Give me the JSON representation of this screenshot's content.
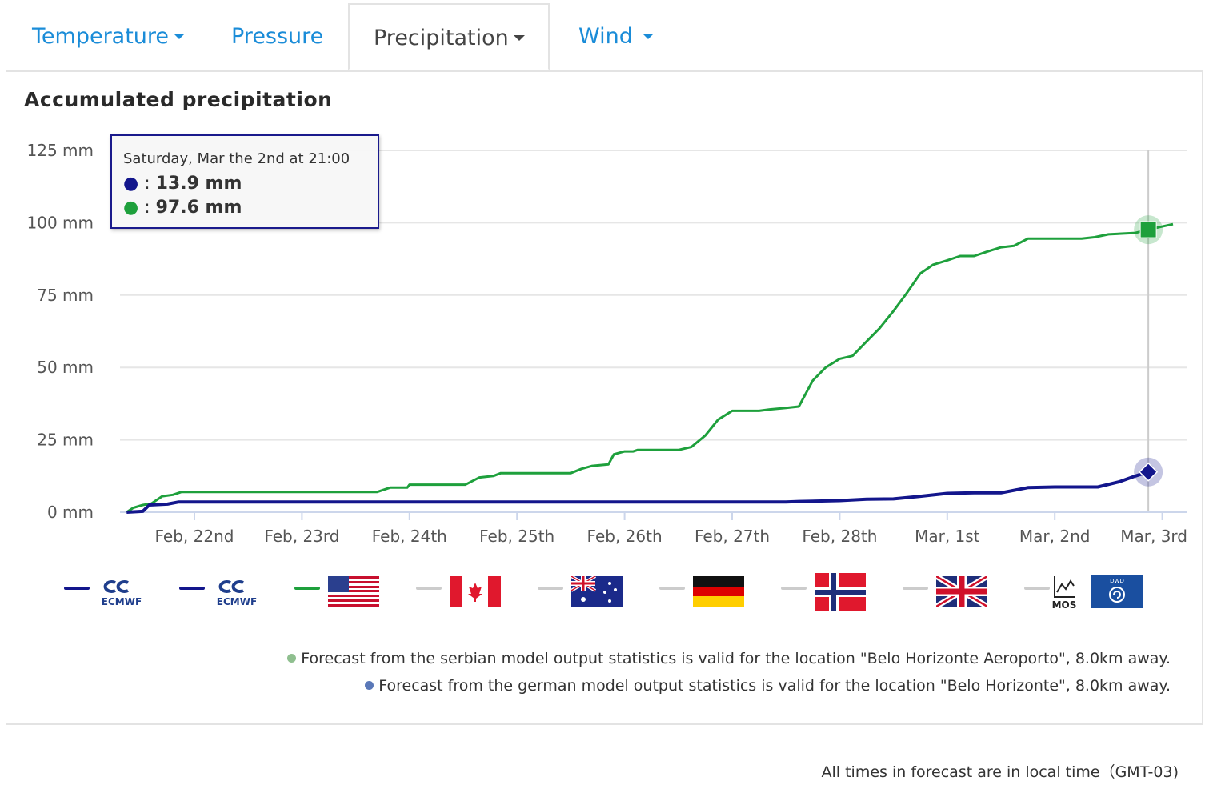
{
  "tabs": [
    {
      "label": "Temperature",
      "dropdown": true,
      "active": false
    },
    {
      "label": "Pressure",
      "dropdown": false,
      "active": false
    },
    {
      "label": "Precipitation",
      "dropdown": true,
      "active": true
    },
    {
      "label": "Wind",
      "dropdown": true,
      "active": false
    }
  ],
  "chart_data": {
    "type": "line",
    "title": "Accumulated precipitation",
    "y_unit": "mm",
    "ylim": [
      0,
      125
    ],
    "y_ticks": [
      "0 mm",
      "25 mm",
      "50 mm",
      "75 mm",
      "100 mm",
      "125 mm"
    ],
    "y_tick_values": [
      0,
      25,
      50,
      75,
      100,
      125
    ],
    "x_ticks": [
      "Feb, 22nd",
      "Feb, 23rd",
      "Feb, 24th",
      "Feb, 25th",
      "Feb, 26th",
      "Feb, 27th",
      "Feb, 28th",
      "Mar, 1st",
      "Mar, 2nd",
      "Mar, 3rd"
    ],
    "x_tick_days": [
      1,
      2,
      3,
      4,
      5,
      6,
      7,
      8,
      9,
      10
    ],
    "x_range_days": [
      0.37,
      10.15
    ],
    "grid": "horizontal",
    "series": [
      {
        "color": "#1ea03c",
        "marker": "square",
        "points": [
          [
            0.37,
            0
          ],
          [
            0.43,
            1.5
          ],
          [
            0.52,
            2.5
          ],
          [
            0.6,
            3
          ],
          [
            0.7,
            5.5
          ],
          [
            0.8,
            6
          ],
          [
            0.88,
            7
          ],
          [
            1.0,
            7
          ],
          [
            2.0,
            7
          ],
          [
            2.7,
            7
          ],
          [
            2.82,
            8.5
          ],
          [
            2.98,
            8.5
          ],
          [
            3.0,
            9.5
          ],
          [
            3.5,
            9.5
          ],
          [
            3.52,
            9.5
          ],
          [
            3.65,
            12
          ],
          [
            3.78,
            12.5
          ],
          [
            3.85,
            13.5
          ],
          [
            4.0,
            13.5
          ],
          [
            4.5,
            13.5
          ],
          [
            4.6,
            15
          ],
          [
            4.7,
            16
          ],
          [
            4.85,
            16.5
          ],
          [
            4.9,
            20
          ],
          [
            5.0,
            21
          ],
          [
            5.08,
            21
          ],
          [
            5.12,
            21.5
          ],
          [
            5.25,
            21.5
          ],
          [
            5.5,
            21.5
          ],
          [
            5.62,
            22.5
          ],
          [
            5.75,
            26.5
          ],
          [
            5.87,
            32
          ],
          [
            6.0,
            35
          ],
          [
            6.25,
            35
          ],
          [
            6.35,
            35.5
          ],
          [
            6.5,
            36
          ],
          [
            6.62,
            36.5
          ],
          [
            6.75,
            45.5
          ],
          [
            6.87,
            50
          ],
          [
            7.0,
            53
          ],
          [
            7.12,
            54
          ],
          [
            7.25,
            59
          ],
          [
            7.37,
            63.5
          ],
          [
            7.5,
            69.5
          ],
          [
            7.62,
            75.5
          ],
          [
            7.75,
            82.5
          ],
          [
            7.87,
            85.5
          ],
          [
            8.0,
            87
          ],
          [
            8.12,
            88.5
          ],
          [
            8.25,
            88.5
          ],
          [
            8.37,
            90
          ],
          [
            8.5,
            91.5
          ],
          [
            8.62,
            92
          ],
          [
            8.75,
            94.5
          ],
          [
            9.0,
            94.5
          ],
          [
            9.25,
            94.5
          ],
          [
            9.37,
            95
          ],
          [
            9.5,
            96
          ],
          [
            9.75,
            96.5
          ],
          [
            9.87,
            97.6
          ],
          [
            10.0,
            98.7
          ],
          [
            10.1,
            99.5
          ]
        ]
      },
      {
        "color": "#13168c",
        "marker": "diamond",
        "points": [
          [
            0.37,
            0
          ],
          [
            0.52,
            0.3
          ],
          [
            0.58,
            2.5
          ],
          [
            0.75,
            2.8
          ],
          [
            0.85,
            3.5
          ],
          [
            1.0,
            3.5
          ],
          [
            2.0,
            3.5
          ],
          [
            3.0,
            3.5
          ],
          [
            4.0,
            3.5
          ],
          [
            5.0,
            3.5
          ],
          [
            6.0,
            3.5
          ],
          [
            6.5,
            3.5
          ],
          [
            6.62,
            3.7
          ],
          [
            6.87,
            3.9
          ],
          [
            7.0,
            4.0
          ],
          [
            7.25,
            4.5
          ],
          [
            7.5,
            4.6
          ],
          [
            7.75,
            5.5
          ],
          [
            8.0,
            6.5
          ],
          [
            8.25,
            6.7
          ],
          [
            8.5,
            6.7
          ],
          [
            8.75,
            8.5
          ],
          [
            9.0,
            8.7
          ],
          [
            9.25,
            8.7
          ],
          [
            9.4,
            8.7
          ],
          [
            9.6,
            10.5
          ],
          [
            9.75,
            12.5
          ],
          [
            9.87,
            13.9
          ]
        ]
      }
    ],
    "tooltip": {
      "x_day": 9.87,
      "header": "Saturday, Mar the 2nd at 21:00",
      "values": [
        {
          "color": "#13168c",
          "label": ": ",
          "value": "13.9 mm"
        },
        {
          "color": "#1ea03c",
          "label": ": ",
          "value": "97.6 mm"
        }
      ]
    }
  },
  "legend": [
    {
      "icon": "ecmwf-logo-icon",
      "text": "ECMWF",
      "line_color": "#13168c"
    },
    {
      "icon": "ecmwf-logo-icon",
      "text": "ECMWF",
      "line_color": "#13168c"
    },
    {
      "icon": "usa-flag-icon",
      "line_color": "#1ea03c"
    },
    {
      "icon": "canada-flag-icon",
      "line_color": "#cccccc"
    },
    {
      "icon": "australia-flag-icon",
      "line_color": "#cccccc"
    },
    {
      "icon": "germany-flag-icon",
      "line_color": "#cccccc"
    },
    {
      "icon": "norway-flag-icon",
      "line_color": "#cccccc"
    },
    {
      "icon": "uk-flag-icon",
      "line_color": "#cccccc"
    },
    {
      "icon": "mos-dwd-icon",
      "text_mos": "MOS",
      "text_dwd": "DWD",
      "line_color": "#cccccc"
    }
  ],
  "notes": [
    {
      "dot_color": "#8fbf8f",
      "text": "Forecast from the serbian model output statistics is valid for the location \"Belo Horizonte Aeroporto\", 8.0km away."
    },
    {
      "dot_color": "#5a78b8",
      "text": "Forecast from the german model output statistics is valid for the location \"Belo Horizonte\", 8.0km away."
    }
  ],
  "footer": "All times in forecast are in local time（GMT-03)"
}
